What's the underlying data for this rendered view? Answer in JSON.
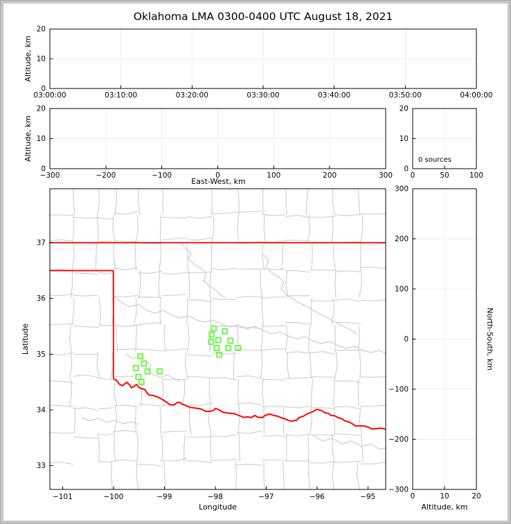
{
  "title": "Oklahoma LMA 0300-0400 UTC August 18, 2021",
  "colors": {
    "state_border": "#ff0000",
    "county_lines": "#cccccc",
    "station_marker": "#66f53c",
    "gridline": "#ececec",
    "axis": "#000000"
  },
  "labels": {
    "altitude": "Altitude, km",
    "east_west": "East-West, km",
    "north_south": "North-South, km",
    "longitude": "Longitude",
    "latitude": "Latitude",
    "sources_annotation": "0 sources"
  },
  "chart_data": [
    {
      "id": "time-height",
      "type": "scatter",
      "xlabel": "",
      "ylabel": "Altitude, km",
      "x_ticks": [
        "03:00:00",
        "03:10:00",
        "03:20:00",
        "03:30:00",
        "03:40:00",
        "03:50:00",
        "04:00:00"
      ],
      "y_ticks": [
        "0",
        "10",
        "20"
      ],
      "xlim": [
        "03:00:00",
        "04:00:00"
      ],
      "ylim": [
        0,
        20
      ],
      "grid": true,
      "points": []
    },
    {
      "id": "east-west-height",
      "type": "scatter",
      "xlabel": "East-West, km",
      "ylabel": "Altitude, km",
      "x_ticks": [
        "−300",
        "−200",
        "−100",
        "0",
        "100",
        "200",
        "300"
      ],
      "y_ticks": [
        "0",
        "10",
        "20"
      ],
      "xlim": [
        -300,
        300
      ],
      "ylim": [
        0,
        20
      ],
      "grid": true,
      "points": []
    },
    {
      "id": "altitude-histogram",
      "type": "bar",
      "xlabel": "",
      "ylabel": "",
      "annotation": "0 sources",
      "x_ticks": [
        "0",
        "50",
        "100"
      ],
      "y_ticks": [
        "0",
        "10",
        "20"
      ],
      "xlim": [
        0,
        100
      ],
      "ylim": [
        0,
        20
      ],
      "grid": true,
      "values": []
    },
    {
      "id": "plan-view-map",
      "type": "scatter",
      "xlabel": "Longitude",
      "ylabel": "Latitude",
      "x_ticks": [
        "−101",
        "−100",
        "−99",
        "−98",
        "−97",
        "−96",
        "−95"
      ],
      "y_ticks": [
        "33",
        "34",
        "35",
        "36",
        "37"
      ],
      "xlim": [
        -101.25,
        -94.65
      ],
      "ylim": [
        32.57,
        37.97
      ],
      "grid": false,
      "map_features": {
        "state_boundary": "Oklahoma state border in red (37N line, panhandle 36.5N, 100W meridian, Red River)",
        "county_boundaries": "light gray county lines"
      },
      "stations": [
        {
          "lon": -98.03,
          "lat": 35.46
        },
        {
          "lon": -97.81,
          "lat": 35.41
        },
        {
          "lon": -98.07,
          "lat": 35.35
        },
        {
          "lon": -98.08,
          "lat": 35.22
        },
        {
          "lon": -97.94,
          "lat": 35.25
        },
        {
          "lon": -97.7,
          "lat": 35.24
        },
        {
          "lon": -97.97,
          "lat": 35.11
        },
        {
          "lon": -97.74,
          "lat": 35.11
        },
        {
          "lon": -97.55,
          "lat": 35.11
        },
        {
          "lon": -97.92,
          "lat": 34.99
        },
        {
          "lon": -99.47,
          "lat": 34.96
        },
        {
          "lon": -99.4,
          "lat": 34.83
        },
        {
          "lon": -99.56,
          "lat": 34.75
        },
        {
          "lon": -99.33,
          "lat": 34.69
        },
        {
          "lon": -99.09,
          "lat": 34.69
        },
        {
          "lon": -99.51,
          "lat": 34.59
        },
        {
          "lon": -99.45,
          "lat": 34.5
        }
      ]
    },
    {
      "id": "height-north-south",
      "type": "scatter",
      "xlabel": "Altitude, km",
      "ylabel": "North-South, km",
      "x_ticks": [
        "0",
        "10",
        "20"
      ],
      "y_ticks": [
        "300",
        "200",
        "100",
        "0",
        "−100",
        "−200",
        "−300"
      ],
      "xlim": [
        0,
        20
      ],
      "ylim": [
        -300,
        300
      ],
      "grid": true,
      "points": []
    }
  ]
}
